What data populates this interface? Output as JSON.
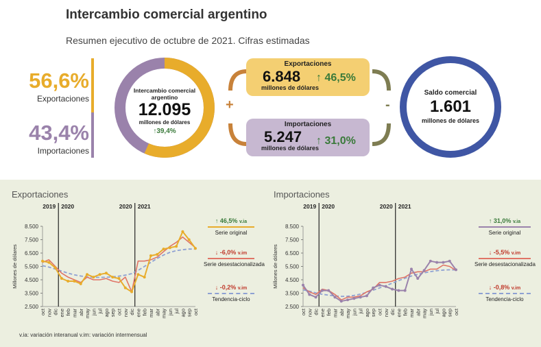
{
  "header": {
    "title": "Intercambio comercial argentino",
    "subtitle": "Resumen ejecutivo de octubre de 2021. Cifras estimadas"
  },
  "shares": {
    "exports_pct": "56,6%",
    "exports_label": "Exportaciones",
    "imports_pct": "43,4%",
    "imports_label": "Importaciones"
  },
  "donut": {
    "label_line1": "Intercambio comercial",
    "label_line2": "argentino",
    "value": "12.095",
    "unit": "millones de dólares",
    "change": "39,4%",
    "exports_share": 56.6,
    "imports_share": 43.4
  },
  "exports_box": {
    "title": "Exportaciones",
    "value": "6.848",
    "unit": "millones de dólares",
    "change": "46,5%"
  },
  "imports_box": {
    "title": "Importaciones",
    "value": "5.247",
    "unit": "millones de dólares",
    "change": "31,0%"
  },
  "operators": {
    "plus": "+",
    "minus": "-"
  },
  "balance": {
    "title": "Saldo comercial",
    "value": "1.601",
    "unit": "millones de dólares"
  },
  "colors": {
    "exports": "#e8ac2b",
    "imports": "#9a82ab",
    "exports_box_bg": "#f4cf72",
    "imports_box_bg": "#c7b8d1",
    "balance_ring": "#3f56a4",
    "desest": "#e07466",
    "trend": "#8ea1d3",
    "orange_bracket": "#c8823a",
    "olive_bracket": "#7e7d52",
    "panel_bg": "#ecefe0"
  },
  "footnote": "v.ia: variación interanual   v.im: variación intermensual",
  "chart_data": [
    {
      "type": "line",
      "title": "Exportaciones",
      "ylabel": "Millones de dólares",
      "ylim": [
        2500,
        8500
      ],
      "yticks": [
        "8.500",
        "7.500",
        "6.500",
        "5.500",
        "4.500",
        "3.500",
        "2.500"
      ],
      "categories": [
        "oct",
        "nov",
        "dic",
        "ene",
        "feb",
        "mar",
        "abr",
        "may",
        "jun",
        "jul",
        "ago",
        "sep",
        "oct",
        "nov",
        "dic",
        "ene",
        "feb",
        "mar",
        "abr",
        "may",
        "jun",
        "jul",
        "ago",
        "sep",
        "oct"
      ],
      "year_labels": [
        "2019",
        "2020",
        "2020",
        "2021"
      ],
      "series": [
        {
          "name": "Serie original",
          "values": [
            5900,
            5800,
            5400,
            4600,
            4400,
            4400,
            4200,
            4900,
            4700,
            4900,
            5000,
            4700,
            4600,
            3900,
            3600,
            4900,
            4700,
            6300,
            6400,
            6800,
            6900,
            7000,
            8100,
            7500,
            6848
          ]
        },
        {
          "name": "Serie desestacionalizada",
          "values": [
            5800,
            6000,
            5500,
            5000,
            4700,
            4500,
            4300,
            4700,
            4500,
            4500,
            4600,
            4400,
            4300,
            4700,
            3600,
            5900,
            5900,
            6000,
            6200,
            6600,
            7000,
            7300,
            7700,
            7300,
            6900
          ]
        },
        {
          "name": "Tendencia-ciclo",
          "values": [
            5550,
            5450,
            5300,
            5150,
            5000,
            4870,
            4780,
            4720,
            4690,
            4680,
            4690,
            4720,
            4770,
            4850,
            4960,
            5200,
            5500,
            5800,
            6100,
            6350,
            6550,
            6680,
            6750,
            6800,
            6800
          ]
        }
      ],
      "legend": [
        {
          "change": "46,5%",
          "suffix": "v.ia",
          "label": "Serie original",
          "direction": "up"
        },
        {
          "change": "-6,0%",
          "suffix": "v.im",
          "label": "Serie desestacionalizada",
          "direction": "down"
        },
        {
          "change": "-0,2%",
          "suffix": "v.im",
          "label": "Tendencia-ciclo",
          "direction": "down"
        }
      ]
    },
    {
      "type": "line",
      "title": "Importaciones",
      "ylabel": "Millones de dólares",
      "ylim": [
        2500,
        8500
      ],
      "yticks": [
        "8.500",
        "7.500",
        "6.500",
        "5.500",
        "4.500",
        "3.500",
        "2.500"
      ],
      "categories": [
        "oct",
        "nov",
        "dic",
        "ene",
        "feb",
        "mar",
        "abr",
        "may",
        "jun",
        "jul",
        "ago",
        "sep",
        "oct",
        "nov",
        "dic",
        "ene",
        "feb",
        "mar",
        "abr",
        "may",
        "jun",
        "jul",
        "ago",
        "sep",
        "oct"
      ],
      "year_labels": [
        "2019",
        "2020",
        "2020",
        "2021"
      ],
      "series": [
        {
          "name": "Serie original",
          "values": [
            4100,
            3400,
            3200,
            3700,
            3700,
            3200,
            2900,
            3000,
            3100,
            3200,
            3300,
            3900,
            4100,
            4000,
            3800,
            3700,
            3700,
            5300,
            4600,
            5200,
            5900,
            5800,
            5800,
            5900,
            5247
          ]
        },
        {
          "name": "Serie desestacionalizada",
          "values": [
            3900,
            3600,
            3400,
            3800,
            3700,
            3400,
            3000,
            3200,
            3200,
            3300,
            3600,
            3800,
            4300,
            4300,
            4400,
            4600,
            4700,
            5000,
            5100,
            5100,
            5300,
            5300,
            5600,
            5500,
            5200
          ]
        },
        {
          "name": "Tendencia-ciclo",
          "values": [
            3750,
            3650,
            3520,
            3420,
            3350,
            3290,
            3260,
            3270,
            3330,
            3430,
            3560,
            3720,
            3890,
            4060,
            4250,
            4440,
            4620,
            4780,
            4910,
            5020,
            5110,
            5180,
            5230,
            5250,
            5240
          ]
        }
      ],
      "legend": [
        {
          "change": "31,0%",
          "suffix": "v.ia",
          "label": "Serie original",
          "direction": "up"
        },
        {
          "change": "-5,5%",
          "suffix": "v.im",
          "label": "Serie desestacionalizada",
          "direction": "down"
        },
        {
          "change": "-0,8%",
          "suffix": "v.im",
          "label": "Tendencia-ciclo",
          "direction": "down"
        }
      ]
    }
  ]
}
